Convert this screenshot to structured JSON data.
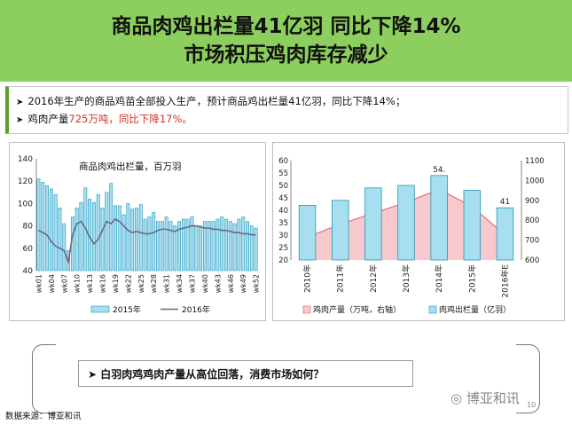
{
  "header": {
    "title_line1": "商品肉鸡出栏量41亿羽  同比下降14%",
    "title_line2": "市场积压鸡肉库存减少",
    "bg_color": "#8ccf5e"
  },
  "bullets": [
    {
      "text": "2016年生产的商品鸡苗全部投入生产，预计商品鸡出栏量41亿羽，同比下降14%；"
    },
    {
      "prefix": "鸡肉产量",
      "highlight": "725万吨，同比下降17%。"
    }
  ],
  "question": "白羽肉鸡鸡肉产量从高位回落，消费市场如何？",
  "source": "数据来源：博亚和讯",
  "watermark": "博亚和讯",
  "page_number": "10",
  "colors": {
    "bar_fill": "#a8dff0",
    "bar_stroke": "#1f96b8",
    "line": "#666a86",
    "area_fill": "#f7c9cc",
    "area_stroke": "#e05a66",
    "accent_red": "#d0312d",
    "accent_green": "#5aa02c"
  },
  "chart_data": [
    {
      "type": "bar",
      "title": "商品肉鸡出栏量，百万羽",
      "ylim": [
        40,
        140
      ],
      "yticks": [
        40,
        60,
        80,
        100,
        120,
        140
      ],
      "x_tick_labels": [
        "wk01",
        "wk04",
        "wk07",
        "wk10",
        "wk13",
        "wk16",
        "wk19",
        "wk22",
        "wk25",
        "wk28",
        "wk31",
        "wk34",
        "wk37",
        "wk40",
        "wk43",
        "wk46",
        "wk49",
        "wk52"
      ],
      "series": [
        {
          "name": "2015年",
          "kind": "bar",
          "values": [
            122,
            119,
            116,
            113,
            108,
            96,
            82,
            58,
            88,
            96,
            101,
            114,
            104,
            101,
            108,
            96,
            110,
            118,
            98,
            98,
            90,
            100,
            95,
            96,
            99,
            86,
            88,
            92,
            84,
            84,
            88,
            84,
            80,
            84,
            86,
            86,
            88,
            80,
            80,
            84,
            84,
            84,
            86,
            88,
            86,
            84,
            82,
            86,
            88,
            84,
            80,
            78
          ]
        },
        {
          "name": "2016年",
          "kind": "line",
          "values": [
            76,
            74,
            72,
            66,
            62,
            60,
            58,
            48,
            72,
            82,
            84,
            78,
            70,
            64,
            68,
            76,
            84,
            82,
            86,
            84,
            80,
            76,
            74,
            75,
            74,
            73,
            73,
            74,
            76,
            77,
            77,
            76,
            75,
            77,
            78,
            79,
            80,
            80,
            79,
            78,
            78,
            77,
            77,
            76,
            76,
            75,
            74,
            74,
            73,
            73,
            72,
            72
          ]
        }
      ]
    },
    {
      "type": "bar",
      "categories": [
        "2010年",
        "2011年",
        "2012年",
        "2013年",
        "2014年",
        "2015年",
        "2016年E"
      ],
      "ylim_left": [
        20,
        60
      ],
      "ylim_right": [
        600,
        1100
      ],
      "yticks_left": [
        20,
        25,
        30,
        35,
        40,
        45,
        50,
        55,
        60
      ],
      "yticks_right": [
        600,
        700,
        800,
        900,
        1000,
        1100
      ],
      "series": [
        {
          "name": "鸡肉产量（万吨，右轴）",
          "kind": "area",
          "axis": "right",
          "values": [
            715,
            780,
            835,
            890,
            955,
            870,
            725
          ]
        },
        {
          "name": "肉鸡出栏量（亿羽）",
          "kind": "bar",
          "axis": "left",
          "values": [
            42,
            44,
            49,
            50,
            54,
            48,
            41
          ]
        }
      ],
      "data_labels": [
        {
          "category": "2014年",
          "text": "54."
        },
        {
          "category": "2016年E",
          "text": "41"
        }
      ]
    }
  ]
}
